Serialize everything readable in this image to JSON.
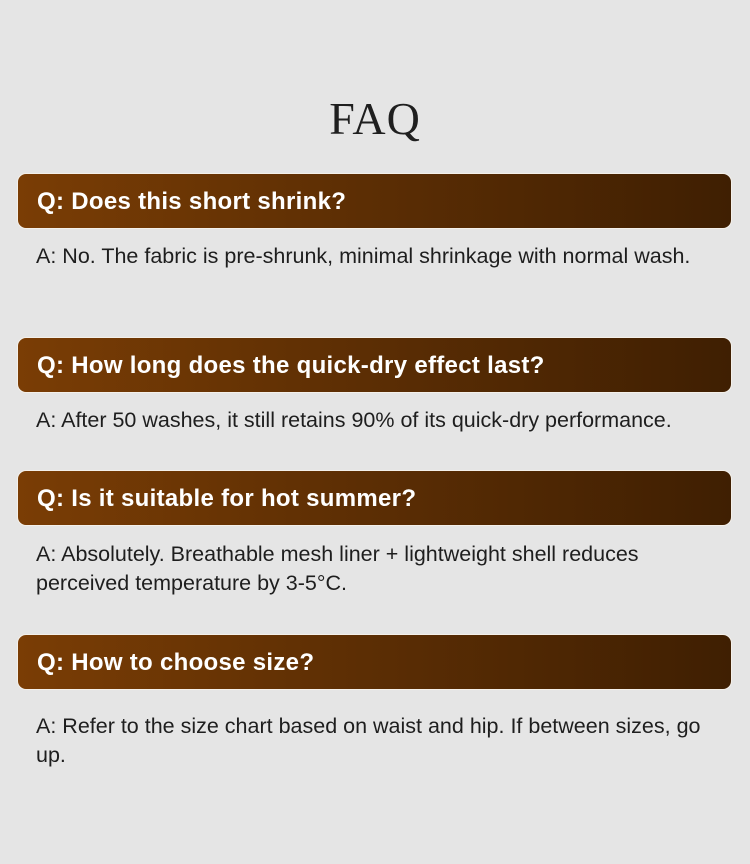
{
  "title": "FAQ",
  "faqs": [
    {
      "q": "Q: Does this short shrink?",
      "a": "A: No. The fabric is pre-shrunk, minimal shrinkage with normal wash."
    },
    {
      "q": "Q: How long does the quick-dry effect last?",
      "a": "A: After 50 washes, it still retains 90% of its quick-dry performance."
    },
    {
      "q": "Q: Is it suitable for hot summer?",
      "a": "A: Absolutely. Breathable mesh liner + lightweight shell reduces perceived temperature by 3-5°C."
    },
    {
      "q": "Q: How to choose size?",
      "a": "A: Refer to the size chart based on waist and hip. If between sizes, go up."
    }
  ],
  "colors": {
    "background": "#e5e5e5",
    "header_start": "#7a3d05",
    "header_end": "#3f1f02"
  }
}
